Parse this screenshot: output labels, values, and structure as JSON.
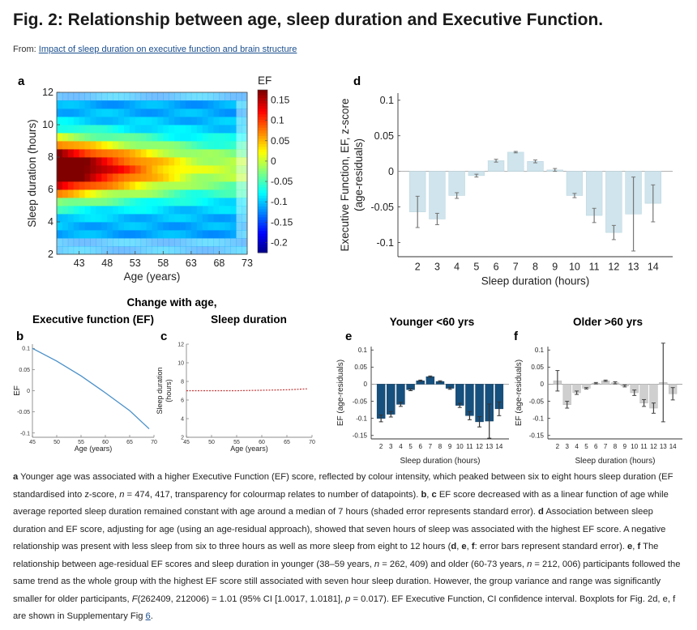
{
  "page": {
    "title": "Fig. 2: Relationship between age, sleep duration and Executive Function.",
    "from_label": "From:",
    "from_link": "Impact of sleep duration on executive function and brain structure"
  },
  "panels": {
    "a": "a",
    "b": "b",
    "c": "c",
    "d": "d",
    "e": "e",
    "f": "f",
    "bc_heading_line1": "Change with age,",
    "b_heading": "Executive function (EF)",
    "c_heading": "Sleep duration",
    "e_heading": "Younger  <60 yrs",
    "f_heading": "Older  >60 yrs"
  },
  "colors": {
    "bar_d": "#cfe4ec",
    "bar_e": "#16507e",
    "bar_f": "#cfcfcf",
    "line_b": "#4a90c8",
    "line_c": "#c23b3b",
    "err": "#777777"
  },
  "chart_data": [
    {
      "id": "a",
      "type": "heatmap",
      "xlabel": "Age (years)",
      "ylabel": "Sleep duration (hours)",
      "xticks": [
        43,
        48,
        53,
        58,
        63,
        68,
        73
      ],
      "yticks": [
        2,
        4,
        6,
        8,
        10,
        12
      ],
      "xlim": [
        39,
        73
      ],
      "ylim": [
        2,
        12
      ],
      "colorbar": {
        "label": "EF",
        "ticks": [
          0.15,
          0.1,
          0.05,
          0,
          -0.05,
          -0.1,
          -0.15,
          -0.2
        ],
        "range": [
          -0.225,
          0.175
        ]
      }
    },
    {
      "id": "d",
      "type": "bar",
      "categories": [
        "2",
        "3",
        "4",
        "5",
        "6",
        "7",
        "8",
        "9",
        "10",
        "11",
        "12",
        "13",
        "14"
      ],
      "values": [
        -0.057,
        -0.067,
        -0.034,
        -0.006,
        0.015,
        0.027,
        0.014,
        0.002,
        -0.034,
        -0.062,
        -0.086,
        -0.06,
        -0.045
      ],
      "errors": [
        0.022,
        0.008,
        0.004,
        0.002,
        0.002,
        0.001,
        0.002,
        0.002,
        0.003,
        0.01,
        0.01,
        0.052,
        0.026
      ],
      "xlabel": "Sleep duration (hours)",
      "ylabel_line1": "Executive Function, EF, z-score",
      "ylabel_line2": "(age-residuals)",
      "yticks": [
        0.1,
        0.05,
        0,
        -0.05,
        -0.1
      ],
      "ylim": [
        -0.12,
        0.11
      ]
    },
    {
      "id": "b",
      "type": "line",
      "x": [
        45,
        50,
        55,
        60,
        65,
        69
      ],
      "y": [
        0.1,
        0.07,
        0.035,
        -0.005,
        -0.047,
        -0.09
      ],
      "xlabel": "Age (years)",
      "ylabel": "EF",
      "xticks": [
        45,
        50,
        55,
        60,
        65,
        70
      ],
      "yticks": [
        0.1,
        0.05,
        0,
        -0.05,
        -0.1
      ],
      "xlim": [
        45,
        70
      ],
      "ylim": [
        -0.11,
        0.11
      ]
    },
    {
      "id": "c",
      "type": "line",
      "x": [
        45,
        50,
        55,
        60,
        65,
        69
      ],
      "y": [
        7.0,
        7.0,
        7.0,
        7.05,
        7.1,
        7.2
      ],
      "xlabel": "Age (years)",
      "ylabel_line1": "Sleep duration",
      "ylabel_line2": "(hours)",
      "xticks": [
        45,
        50,
        55,
        60,
        65,
        70
      ],
      "yticks": [
        2,
        4,
        6,
        8,
        10,
        12
      ],
      "xlim": [
        45,
        70
      ],
      "ylim": [
        2,
        12
      ]
    },
    {
      "id": "e",
      "type": "bar",
      "categories": [
        "2",
        "3",
        "4",
        "5",
        "6",
        "7",
        "8",
        "9",
        "10",
        "11",
        "12",
        "13",
        "14"
      ],
      "values": [
        -0.1,
        -0.088,
        -0.059,
        -0.016,
        0.01,
        0.022,
        0.008,
        -0.012,
        -0.062,
        -0.092,
        -0.11,
        -0.108,
        -0.072
      ],
      "errors": [
        0.01,
        0.008,
        0.006,
        0.003,
        0.002,
        0.002,
        0.002,
        0.003,
        0.006,
        0.012,
        0.015,
        0.05,
        0.02
      ],
      "xlabel": "Sleep duration (hours)",
      "ylabel": "EF (age-residuals)",
      "yticks": [
        0.1,
        0.05,
        0,
        -0.05,
        -0.1,
        -0.15
      ],
      "ylim": [
        -0.16,
        0.11
      ]
    },
    {
      "id": "f",
      "type": "bar",
      "categories": [
        "2",
        "3",
        "4",
        "5",
        "6",
        "7",
        "8",
        "9",
        "10",
        "11",
        "12",
        "13",
        "14"
      ],
      "values": [
        0.01,
        -0.06,
        -0.025,
        -0.012,
        0.003,
        0.01,
        0.004,
        -0.005,
        -0.025,
        -0.055,
        -0.07,
        0.005,
        -0.028
      ],
      "errors": [
        0.03,
        0.01,
        0.005,
        0.002,
        0.002,
        0.002,
        0.003,
        0.003,
        0.008,
        0.01,
        0.015,
        0.115,
        0.018
      ],
      "xlabel": "Sleep duration (hours)",
      "ylabel": "EF (age-residuals)",
      "yticks": [
        0.1,
        0.05,
        0,
        -0.05,
        -0.1,
        -0.15
      ],
      "ylim": [
        -0.16,
        0.11
      ]
    }
  ],
  "caption": {
    "s1": "a",
    "s2": " Younger age was associated with a higher Executive Function (EF) score, reflected by colour intensity, which peaked between six to eight hours sleep duration (EF standardised into z-score, ",
    "s3": "n",
    "s4": " = 474, 417, transparency for colourmap relates to number of datapoints). ",
    "s5": "b",
    "s6": ", ",
    "s7": "c",
    "s8": " EF score decreased with as a linear function of age while average reported sleep duration remained constant with age around a median of 7 hours (shaded error represents standard error). ",
    "s9": "d",
    "s10": " Association between sleep duration and EF score, adjusting for age (using an age-residual approach), showed that seven hours of sleep was associated with the highest EF score. A negative relationship was present with less sleep from six to three hours as well as more sleep from eight to 12 hours (",
    "s11": "d",
    "s12": ", ",
    "s13": "e",
    "s14": ", ",
    "s15": "f",
    "s16": ": error bars represent standard error). ",
    "s17": "e",
    "s18": ", ",
    "s19": "f",
    "s20": " The relationship between age-residual EF scores and sleep duration in younger (38–59 years, ",
    "s21": "n",
    "s22": " = 262, 409) and older (60-73 years, ",
    "s23": "n",
    "s24": " = 212, 006) participants followed the same trend as the whole group with the highest EF score still associated with seven hour sleep duration. However, the group variance and range was significantly smaller for older participants, ",
    "s25": "F",
    "s26": "(262409, 212006) = 1.01 (95% CI [1.0017, 1.0181], ",
    "s27": "p",
    "s28": " = 0.017). EF Executive Function, CI confidence interval. Boxplots for Fig. 2d, e, f are shown in Supplementary Fig ",
    "s29": "6",
    "s30": "."
  }
}
